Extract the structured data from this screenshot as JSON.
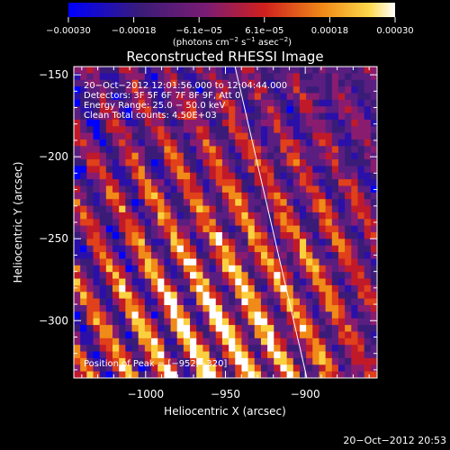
{
  "chart_data": {
    "type": "heatmap",
    "title": "Reconstructed RHESSI Image",
    "xlabel": "Heliocentric X (arcsec)",
    "ylabel": "Heliocentric Y (arcsec)",
    "xlim": [
      -1045,
      -855
    ],
    "ylim": [
      -335,
      -145
    ],
    "x_ticks": [
      -1000,
      -950,
      -900
    ],
    "x_tick_labels": [
      "−1000",
      "−950",
      "−900"
    ],
    "y_ticks": [
      -150,
      -200,
      -250,
      -300
    ],
    "y_tick_labels": [
      "−150",
      "−200",
      "−250",
      "−300"
    ],
    "colorbar": {
      "range": [
        -0.0003,
        0.0003
      ],
      "tick_labels": [
        "−0.00030",
        "−0.00018",
        "−6.1e−05",
        "6.1e−05",
        "0.00018",
        "0.00030"
      ],
      "units_text": "(photons cm",
      "units_exp1": "−2",
      "units_mid": " s",
      "units_exp2": "−1",
      "units_mid2": " asec",
      "units_exp3": "−2",
      "units_end": ")"
    },
    "annotations": {
      "time_range": "20−Oct−2012 12:01:56.000  to  12:04:44.000",
      "detectors": "Detectors: 3F 5F 6F 7F 8F 9F, Att 0",
      "energy_range": "Energy Range: 25.0 − 50.0 keV",
      "clean_counts": "Clean      Total counts: 4.50E+03",
      "peak_position": "Position of Peak = [−952,−320]"
    },
    "limb_line": {
      "x1": -944,
      "y1": -145,
      "x2": -899,
      "y2": -335
    },
    "colormap": [
      "#0000ff",
      "#2a10a8",
      "#3a1c78",
      "#5a1e80",
      "#8a1c70",
      "#c01a2a",
      "#e0401a",
      "#f08a18",
      "#fbd040",
      "#ffffff"
    ],
    "grid": false,
    "legend": "none",
    "pattern": {
      "grid_cols": 47,
      "grid_rows": 47,
      "stripe_direction": "diagonal, lower-left to upper-left bands sloping down-right",
      "peak_at": [
        -952,
        -320
      ]
    }
  },
  "footer": {
    "timestamp": "20−Oct−2012 20:53"
  }
}
